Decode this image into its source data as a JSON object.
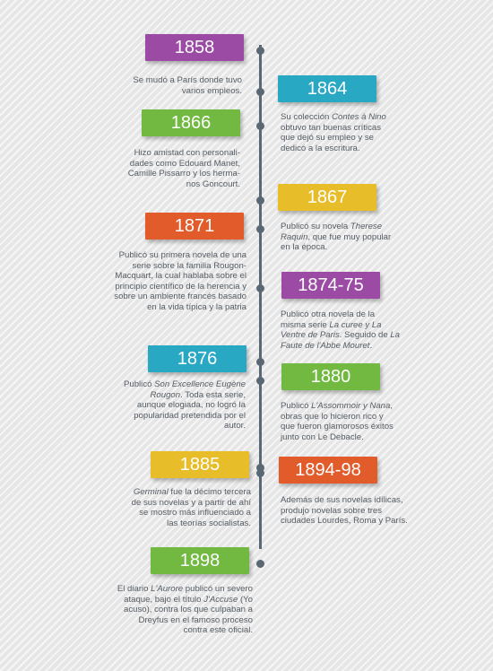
{
  "colors": {
    "purple": "#9b4ba4",
    "cyan": "#29a8c4",
    "green": "#71b940",
    "yellow": "#e8bd2a",
    "orange": "#e25b2b",
    "axis": "#5a6874",
    "text": "#555c63"
  },
  "events": [
    {
      "year": "1858",
      "color": "#9b4ba4",
      "side": "left",
      "text": [
        [
          "Se mudó a  París donde tuvo",
          ""
        ],
        [
          "varios empleos.",
          ""
        ]
      ]
    },
    {
      "year": "1864",
      "color": "#29a8c4",
      "side": "right",
      "text": [
        [
          "Su colección ",
          "Contes à Nino"
        ],
        [
          "obtuvo tan buenas críticas",
          ""
        ],
        [
          "que dejó su empleo y se",
          ""
        ],
        [
          "dedicó a la escritura.",
          ""
        ]
      ]
    },
    {
      "year": "1866",
      "color": "#71b940",
      "side": "left",
      "text": [
        [
          "Hizo amistad con personali-",
          ""
        ],
        [
          "dades como Edouard Manet,",
          ""
        ],
        [
          "Camille Pissarro y los herma-",
          ""
        ],
        [
          "nos Goncourt.",
          ""
        ]
      ]
    },
    {
      "year": "1867",
      "color": "#e8bd2a",
      "side": "right",
      "text": [
        [
          "Publicó su novela ",
          "Therese"
        ],
        [
          "",
          "Raquin",
          ", que fue muy popular"
        ],
        [
          "en la época.",
          ""
        ]
      ]
    },
    {
      "year": "1871",
      "color": "#e25b2b",
      "side": "left",
      "text": [
        [
          "Publicó su primera novela de una",
          ""
        ],
        [
          "serie sobre la familia Rougon-",
          ""
        ],
        [
          "Macquart, la cual hablaba sobre el",
          ""
        ],
        [
          "principio científico de la herencia y",
          ""
        ],
        [
          "sobre un ambiente francés basado",
          ""
        ],
        [
          "en la vida típica y la patria",
          ""
        ]
      ]
    },
    {
      "year": "1874-75",
      "color": "#9b4ba4",
      "side": "right",
      "text": [
        [
          "Publicó otra novela de la",
          ""
        ],
        [
          "misma serie ",
          "La curee y La"
        ],
        [
          "",
          "Ventre de Paris",
          ". Seguido de ",
          "La"
        ],
        [
          "",
          "Faute de l'Abbe Mouret",
          "."
        ]
      ]
    },
    {
      "year": "1876",
      "color": "#29a8c4",
      "side": "left",
      "text": [
        [
          "Publicó ",
          "Son Excellence Eugène"
        ],
        [
          "",
          "Rougon",
          ". Toda esta serie,"
        ],
        [
          "aunque elogiada, no logró la",
          ""
        ],
        [
          "popularidad pretendida por el",
          ""
        ],
        [
          "autor.",
          ""
        ]
      ]
    },
    {
      "year": "1880",
      "color": "#71b940",
      "side": "right",
      "text": [
        [
          "Publicó ",
          "L'Assommoir y Nana",
          ","
        ],
        [
          "obras que lo hicieron rico y",
          ""
        ],
        [
          "que fueron glamorosos éxitos",
          ""
        ],
        [
          "junto con Le Debacle.",
          ""
        ]
      ]
    },
    {
      "year": "1885",
      "color": "#e8bd2a",
      "side": "left",
      "text": [
        [
          "",
          "Germinal",
          " fue la décimo tercera"
        ],
        [
          "de sus novelas y a partir de ahí",
          ""
        ],
        [
          "se mostro más influenciado a",
          ""
        ],
        [
          "las teorías socialistas.",
          ""
        ]
      ]
    },
    {
      "year": "1894-98",
      "color": "#e25b2b",
      "side": "right",
      "text": [
        [
          "Además de sus novelas idílicas,",
          ""
        ],
        [
          "produjo novelas sobre tres",
          ""
        ],
        [
          "ciudades Lourdes, Roma y  París.",
          ""
        ]
      ]
    },
    {
      "year": "1898",
      "color": "#71b940",
      "side": "left",
      "text": [
        [
          "El diario ",
          "L'Aurore",
          " publicó un severo"
        ],
        [
          "ataque, bajo el título ",
          "J'Accuse",
          " (Yo"
        ],
        [
          "acuso), contra los que culpaban a",
          ""
        ],
        [
          "Dreyfus en el famoso proceso",
          ""
        ],
        [
          "contra este oficial.",
          ""
        ]
      ]
    }
  ]
}
